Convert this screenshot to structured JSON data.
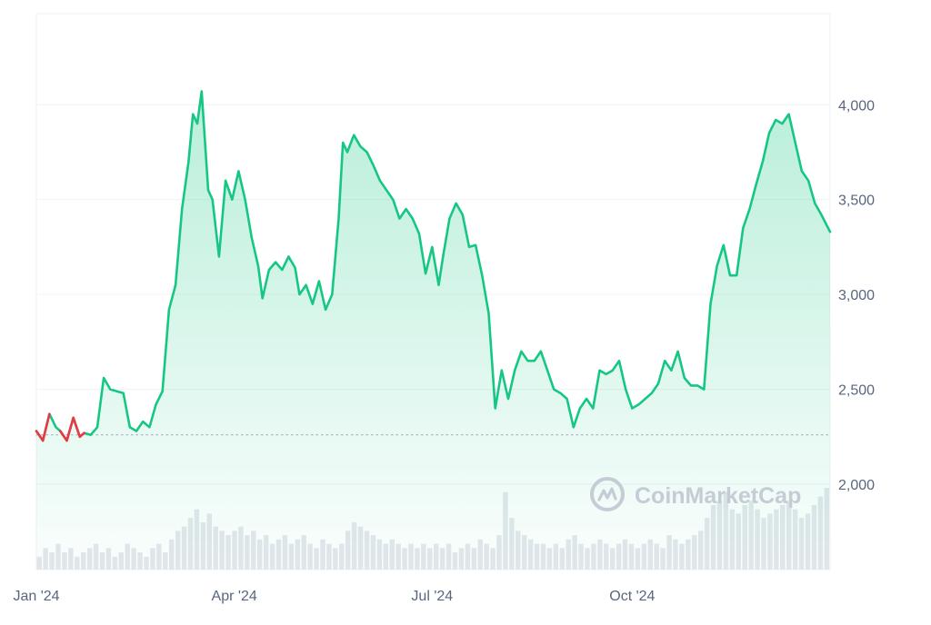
{
  "watermark": {
    "text": "CoinMarketCap",
    "icon": "coinmarketcap-logo-icon"
  },
  "colors": {
    "up": "#16c784",
    "down": "#ea3943",
    "grid": "#eff2f5",
    "axis_text": "#58667e",
    "baseline": "#a6b0c3",
    "volume": "#e4e7ed",
    "watermark": "#c5ccd6"
  },
  "chart_data": {
    "type": "area",
    "title": "",
    "xlabel": "",
    "ylabel": "",
    "x_ticks": [
      {
        "label": "Jan '24",
        "date": "2024-01-01"
      },
      {
        "label": "Apr '24",
        "date": "2024-04-01"
      },
      {
        "label": "Jul '24",
        "date": "2024-07-01"
      },
      {
        "label": "Oct '24",
        "date": "2024-10-01"
      }
    ],
    "y_ticks": [
      2000,
      2500,
      3000,
      3500,
      4000
    ],
    "y_tick_labels": [
      "2,000",
      "2,500",
      "3,000",
      "3,500",
      "4,000"
    ],
    "ylim": [
      1550,
      4480
    ],
    "xlim": [
      "2024-01-01",
      "2024-12-31"
    ],
    "baseline_value": 2260,
    "grid": true,
    "series": [
      {
        "x": [
          "2024-01-01",
          "2024-01-04",
          "2024-01-07",
          "2024-01-10",
          "2024-01-12",
          "2024-01-15",
          "2024-01-18",
          "2024-01-21",
          "2024-01-23",
          "2024-01-26",
          "2024-01-29",
          "2024-02-01",
          "2024-02-04",
          "2024-02-07",
          "2024-02-10",
          "2024-02-13",
          "2024-02-16",
          "2024-02-19",
          "2024-02-22",
          "2024-02-25",
          "2024-02-28",
          "2024-03-02",
          "2024-03-05",
          "2024-03-08",
          "2024-03-11",
          "2024-03-13",
          "2024-03-15",
          "2024-03-17",
          "2024-03-20",
          "2024-03-22",
          "2024-03-25",
          "2024-03-28",
          "2024-03-31",
          "2024-04-03",
          "2024-04-06",
          "2024-04-09",
          "2024-04-12",
          "2024-04-14",
          "2024-04-17",
          "2024-04-20",
          "2024-04-23",
          "2024-04-26",
          "2024-04-29",
          "2024-05-01",
          "2024-05-04",
          "2024-05-07",
          "2024-05-10",
          "2024-05-13",
          "2024-05-16",
          "2024-05-19",
          "2024-05-21",
          "2024-05-23",
          "2024-05-26",
          "2024-05-29",
          "2024-06-01",
          "2024-06-04",
          "2024-06-07",
          "2024-06-10",
          "2024-06-13",
          "2024-06-16",
          "2024-06-19",
          "2024-06-22",
          "2024-06-25",
          "2024-06-28",
          "2024-07-01",
          "2024-07-04",
          "2024-07-06",
          "2024-07-09",
          "2024-07-12",
          "2024-07-15",
          "2024-07-18",
          "2024-07-21",
          "2024-07-24",
          "2024-07-27",
          "2024-07-30",
          "2024-08-02",
          "2024-08-05",
          "2024-08-08",
          "2024-08-11",
          "2024-08-14",
          "2024-08-17",
          "2024-08-20",
          "2024-08-23",
          "2024-08-26",
          "2024-08-29",
          "2024-09-01",
          "2024-09-04",
          "2024-09-07",
          "2024-09-10",
          "2024-09-13",
          "2024-09-16",
          "2024-09-19",
          "2024-09-22",
          "2024-09-25",
          "2024-09-28",
          "2024-10-01",
          "2024-10-04",
          "2024-10-07",
          "2024-10-10",
          "2024-10-13",
          "2024-10-16",
          "2024-10-19",
          "2024-10-22",
          "2024-10-25",
          "2024-10-28",
          "2024-10-31",
          "2024-11-03",
          "2024-11-06",
          "2024-11-09",
          "2024-11-12",
          "2024-11-15",
          "2024-11-18",
          "2024-11-21",
          "2024-11-24",
          "2024-11-27",
          "2024-11-30",
          "2024-12-03",
          "2024-12-06",
          "2024-12-09",
          "2024-12-12",
          "2024-12-15",
          "2024-12-18",
          "2024-12-21",
          "2024-12-24",
          "2024-12-27",
          "2024-12-31"
        ],
        "y": [
          2280,
          2230,
          2370,
          2300,
          2280,
          2230,
          2350,
          2250,
          2270,
          2260,
          2300,
          2560,
          2500,
          2490,
          2480,
          2300,
          2280,
          2330,
          2300,
          2420,
          2490,
          2920,
          3050,
          3450,
          3700,
          3950,
          3900,
          4070,
          3550,
          3500,
          3200,
          3600,
          3500,
          3650,
          3500,
          3300,
          3150,
          2980,
          3130,
          3170,
          3130,
          3200,
          3140,
          3000,
          3050,
          2950,
          3070,
          2920,
          3000,
          3400,
          3800,
          3750,
          3840,
          3780,
          3750,
          3680,
          3600,
          3550,
          3500,
          3400,
          3450,
          3400,
          3320,
          3110,
          3250,
          3050,
          3200,
          3400,
          3480,
          3420,
          3250,
          3260,
          3100,
          2900,
          2400,
          2600,
          2450,
          2600,
          2700,
          2650,
          2650,
          2700,
          2600,
          2500,
          2480,
          2450,
          2300,
          2400,
          2450,
          2400,
          2600,
          2580,
          2600,
          2650,
          2500,
          2400,
          2420,
          2450,
          2480,
          2530,
          2650,
          2600,
          2700,
          2560,
          2520,
          2520,
          2500,
          2950,
          3150,
          3260,
          3100,
          3100,
          3350,
          3450,
          3580,
          3700,
          3850,
          3920,
          3900,
          3950,
          3800,
          3650,
          3600,
          3480,
          3420,
          3330
        ]
      }
    ],
    "volume": [
      3,
      5,
      4,
      6,
      4,
      5,
      3,
      4,
      5,
      6,
      4,
      5,
      3,
      4,
      6,
      5,
      4,
      3,
      5,
      6,
      4,
      7,
      9,
      10,
      12,
      14,
      11,
      13,
      10,
      9,
      8,
      9,
      10,
      8,
      9,
      7,
      8,
      6,
      7,
      8,
      6,
      7,
      8,
      6,
      5,
      7,
      6,
      5,
      6,
      9,
      11,
      10,
      9,
      8,
      7,
      6,
      7,
      6,
      5,
      6,
      5,
      6,
      5,
      6,
      5,
      6,
      4,
      5,
      6,
      5,
      7,
      6,
      5,
      8,
      18,
      12,
      9,
      8,
      7,
      6,
      6,
      5,
      6,
      5,
      7,
      8,
      6,
      5,
      6,
      7,
      6,
      5,
      6,
      7,
      6,
      5,
      6,
      7,
      6,
      5,
      8,
      7,
      6,
      7,
      8,
      9,
      12,
      15,
      16,
      18,
      14,
      13,
      15,
      16,
      14,
      12,
      13,
      14,
      15,
      16,
      14,
      12,
      13,
      15,
      17,
      19
    ]
  }
}
